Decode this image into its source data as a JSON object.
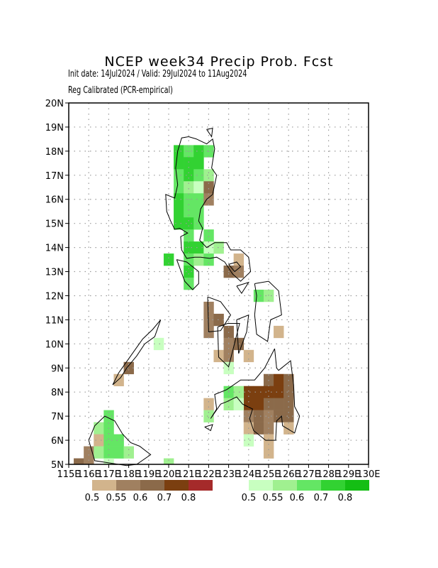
{
  "header": {
    "title": "NCEP week34 Precip Prob. Fcst",
    "subtitle_1": "Init date: 14Jul2024 / Valid: 29Jul2024 to 11Aug2024",
    "subtitle_2": "Reg Calibrated (PCR-empirical)"
  },
  "axes": {
    "lon_min": 115,
    "lon_max": 130,
    "lat_min": 5,
    "lat_max": 20,
    "x_ticks": [
      "115E",
      "116E",
      "117E",
      "118E",
      "119E",
      "120E",
      "121E",
      "122E",
      "123E",
      "124E",
      "125E",
      "126E",
      "127E",
      "128E",
      "129E",
      "130E"
    ],
    "y_ticks": [
      "5N",
      "6N",
      "7N",
      "8N",
      "9N",
      "10N",
      "11N",
      "12N",
      "13N",
      "14N",
      "15N",
      "16N",
      "17N",
      "18N",
      "19N",
      "20N"
    ],
    "grid": true
  },
  "legend": {
    "dry": {
      "colors": [
        "#d2b48c",
        "#a08060",
        "#8b6a4a",
        "#7b3f10",
        "#a52a2a"
      ],
      "labels": [
        "0.5",
        "0.55",
        "0.6",
        "0.7",
        "0.8"
      ]
    },
    "wet": {
      "colors": [
        "#c8ffc0",
        "#a0f090",
        "#64e664",
        "#32d232",
        "#14be14"
      ],
      "labels": [
        "0.5",
        "0.55",
        "0.6",
        "0.7",
        "0.8"
      ]
    }
  },
  "cells": [
    {
      "lon": 120.5,
      "lat": 18,
      "c": "#32d232"
    },
    {
      "lon": 120.5,
      "lat": 17.5,
      "c": "#32d232"
    },
    {
      "lon": 120.5,
      "lat": 17,
      "c": "#64e664"
    },
    {
      "lon": 120.5,
      "lat": 16.5,
      "c": "#64e664"
    },
    {
      "lon": 120.5,
      "lat": 16,
      "c": "#32d232"
    },
    {
      "lon": 120.5,
      "lat": 15.5,
      "c": "#32d232"
    },
    {
      "lon": 120.5,
      "lat": 15,
      "c": "#32d232"
    },
    {
      "lon": 121,
      "lat": 18,
      "c": "#64e664"
    },
    {
      "lon": 121,
      "lat": 17.5,
      "c": "#32d232"
    },
    {
      "lon": 121,
      "lat": 17,
      "c": "#32d232"
    },
    {
      "lon": 121,
      "lat": 16.5,
      "c": "#a0f090"
    },
    {
      "lon": 121,
      "lat": 16,
      "c": "#64e664"
    },
    {
      "lon": 121,
      "lat": 15.5,
      "c": "#64e664"
    },
    {
      "lon": 121,
      "lat": 15,
      "c": "#32d232"
    },
    {
      "lon": 121,
      "lat": 14.5,
      "c": "#64e664"
    },
    {
      "lon": 121,
      "lat": 14,
      "c": "#32d232"
    },
    {
      "lon": 121,
      "lat": 13.5,
      "c": "#64e664"
    },
    {
      "lon": 121,
      "lat": 13,
      "c": "#32d232"
    },
    {
      "lon": 121,
      "lat": 12.5,
      "c": "#64e664"
    },
    {
      "lon": 121.5,
      "lat": 18,
      "c": "#32d232"
    },
    {
      "lon": 121.5,
      "lat": 17.5,
      "c": "#32d232"
    },
    {
      "lon": 121.5,
      "lat": 17,
      "c": "#64e664"
    },
    {
      "lon": 121.5,
      "lat": 16.5,
      "c": "#c8ffc0"
    },
    {
      "lon": 121.5,
      "lat": 16,
      "c": "#64e664"
    },
    {
      "lon": 121.5,
      "lat": 15.5,
      "c": "#64e664"
    },
    {
      "lon": 121.5,
      "lat": 15,
      "c": "#64e664"
    },
    {
      "lon": 121.5,
      "lat": 14,
      "c": "#32d232"
    },
    {
      "lon": 121.5,
      "lat": 13.5,
      "c": "#a0f090"
    },
    {
      "lon": 122,
      "lat": 18,
      "c": "#64e664"
    },
    {
      "lon": 122,
      "lat": 17,
      "c": "#a0f090"
    },
    {
      "lon": 122,
      "lat": 16.5,
      "c": "#8b6a4a"
    },
    {
      "lon": 122,
      "lat": 16,
      "c": "#a08060"
    },
    {
      "lon": 122,
      "lat": 14.5,
      "c": "#64e664"
    },
    {
      "lon": 122,
      "lat": 14,
      "c": "#c8ffc0"
    },
    {
      "lon": 122,
      "lat": 13.5,
      "c": "#64e664"
    },
    {
      "lon": 122.5,
      "lat": 14,
      "c": "#a0f090"
    },
    {
      "lon": 120,
      "lat": 13.5,
      "c": "#32d232"
    },
    {
      "lon": 123.5,
      "lat": 13.5,
      "c": "#d2b48c"
    },
    {
      "lon": 123,
      "lat": 13,
      "c": "#8b6a4a"
    },
    {
      "lon": 123.5,
      "lat": 13,
      "c": "#a08060"
    },
    {
      "lon": 124.5,
      "lat": 12,
      "c": "#64e664"
    },
    {
      "lon": 125,
      "lat": 12,
      "c": "#a0f090"
    },
    {
      "lon": 122,
      "lat": 11.5,
      "c": "#a08060"
    },
    {
      "lon": 122,
      "lat": 11,
      "c": "#a08060"
    },
    {
      "lon": 122.5,
      "lat": 11,
      "c": "#8b6a4a"
    },
    {
      "lon": 122,
      "lat": 10.5,
      "c": "#a08060"
    },
    {
      "lon": 123,
      "lat": 10.5,
      "c": "#8b6a4a"
    },
    {
      "lon": 123,
      "lat": 10,
      "c": "#a08060"
    },
    {
      "lon": 123.5,
      "lat": 10,
      "c": "#8b6a4a"
    },
    {
      "lon": 122.5,
      "lat": 9.5,
      "c": "#d2b48c"
    },
    {
      "lon": 123,
      "lat": 9.5,
      "c": "#a08060"
    },
    {
      "lon": 124,
      "lat": 9.5,
      "c": "#d2b48c"
    },
    {
      "lon": 123,
      "lat": 9,
      "c": "#c8ffc0"
    },
    {
      "lon": 125.5,
      "lat": 10.5,
      "c": "#d2b48c"
    },
    {
      "lon": 118,
      "lat": 9,
      "c": "#8b6a4a"
    },
    {
      "lon": 117.5,
      "lat": 8.5,
      "c": "#d2b48c"
    },
    {
      "lon": 119.5,
      "lat": 10,
      "c": "#c8ffc0"
    },
    {
      "lon": 125,
      "lat": 8.5,
      "c": "#8b6a4a"
    },
    {
      "lon": 125.5,
      "lat": 8.5,
      "c": "#7b3f10"
    },
    {
      "lon": 126,
      "lat": 8.5,
      "c": "#8b6a4a"
    },
    {
      "lon": 124,
      "lat": 8,
      "c": "#7b3f10"
    },
    {
      "lon": 124.5,
      "lat": 8,
      "c": "#7b3f10"
    },
    {
      "lon": 125,
      "lat": 8,
      "c": "#7b3f10"
    },
    {
      "lon": 125.5,
      "lat": 8,
      "c": "#7b3f10"
    },
    {
      "lon": 126,
      "lat": 8,
      "c": "#8b6a4a"
    },
    {
      "lon": 123,
      "lat": 8,
      "c": "#64e664"
    },
    {
      "lon": 123.5,
      "lat": 8,
      "c": "#a0f090"
    },
    {
      "lon": 124,
      "lat": 7.5,
      "c": "#7b3f10"
    },
    {
      "lon": 124.5,
      "lat": 7.5,
      "c": "#7b3f10"
    },
    {
      "lon": 125,
      "lat": 7.5,
      "c": "#8b6a4a"
    },
    {
      "lon": 125.5,
      "lat": 7.5,
      "c": "#8b6a4a"
    },
    {
      "lon": 126,
      "lat": 7.5,
      "c": "#8b6a4a"
    },
    {
      "lon": 123,
      "lat": 7.5,
      "c": "#a0f090"
    },
    {
      "lon": 122,
      "lat": 7.5,
      "c": "#d2b48c"
    },
    {
      "lon": 123.5,
      "lat": 7.5,
      "c": "#c8ffc0"
    },
    {
      "lon": 124,
      "lat": 7,
      "c": "#a08060"
    },
    {
      "lon": 124.5,
      "lat": 7,
      "c": "#8b6a4a"
    },
    {
      "lon": 125,
      "lat": 7,
      "c": "#a08060"
    },
    {
      "lon": 125.5,
      "lat": 7,
      "c": "#8b6a4a"
    },
    {
      "lon": 126,
      "lat": 7,
      "c": "#8b6a4a"
    },
    {
      "lon": 122,
      "lat": 7,
      "c": "#a0f090"
    },
    {
      "lon": 124,
      "lat": 6.5,
      "c": "#d2b48c"
    },
    {
      "lon": 124.5,
      "lat": 6.5,
      "c": "#8b6a4a"
    },
    {
      "lon": 125,
      "lat": 6.5,
      "c": "#a08060"
    },
    {
      "lon": 126,
      "lat": 6.5,
      "c": "#d2b48c"
    },
    {
      "lon": 124,
      "lat": 6,
      "c": "#c8ffc0"
    },
    {
      "lon": 125,
      "lat": 6,
      "c": "#d2b48c"
    },
    {
      "lon": 125,
      "lat": 5.5,
      "c": "#d2b48c"
    },
    {
      "lon": 117,
      "lat": 7,
      "c": "#64e664"
    },
    {
      "lon": 116.5,
      "lat": 6.5,
      "c": "#a0f090"
    },
    {
      "lon": 117,
      "lat": 6.5,
      "c": "#64e664"
    },
    {
      "lon": 116.5,
      "lat": 6,
      "c": "#d2b48c"
    },
    {
      "lon": 117,
      "lat": 6,
      "c": "#64e664"
    },
    {
      "lon": 117.5,
      "lat": 6,
      "c": "#64e664"
    },
    {
      "lon": 116,
      "lat": 5.5,
      "c": "#a08060"
    },
    {
      "lon": 116.5,
      "lat": 5.5,
      "c": "#a0f090"
    },
    {
      "lon": 117,
      "lat": 5.5,
      "c": "#64e664"
    },
    {
      "lon": 117.5,
      "lat": 5.5,
      "c": "#64e664"
    },
    {
      "lon": 118,
      "lat": 5.5,
      "c": "#a0f090"
    },
    {
      "lon": 115.5,
      "lat": 5,
      "c": "#8b6a4a"
    },
    {
      "lon": 116,
      "lat": 5,
      "c": "#a08060"
    },
    {
      "lon": 117,
      "lat": 5,
      "c": "#c8ffc0"
    },
    {
      "lon": 120,
      "lat": 5,
      "c": "#a0f090"
    }
  ],
  "coastlines": [
    [
      [
        121.4,
        18.5
      ],
      [
        121.9,
        18.3
      ],
      [
        122.2,
        18.5
      ],
      [
        122.3,
        18.1
      ],
      [
        122.15,
        17.3
      ],
      [
        122.4,
        17.0
      ],
      [
        122.2,
        16.2
      ],
      [
        121.9,
        16.0
      ],
      [
        121.6,
        15.6
      ],
      [
        121.5,
        15.1
      ],
      [
        121.7,
        14.8
      ],
      [
        121.55,
        14.3
      ],
      [
        121.9,
        14.0
      ],
      [
        122.3,
        14.2
      ],
      [
        122.9,
        14.2
      ],
      [
        123.1,
        13.9
      ],
      [
        123.6,
        13.9
      ],
      [
        124.0,
        13.6
      ],
      [
        124.1,
        13.0
      ],
      [
        123.6,
        12.6
      ],
      [
        123.2,
        12.9
      ],
      [
        122.8,
        13.4
      ],
      [
        122.4,
        13.6
      ],
      [
        122.05,
        13.55
      ],
      [
        121.6,
        13.6
      ],
      [
        121.3,
        13.6
      ],
      [
        120.9,
        13.55
      ],
      [
        120.65,
        13.9
      ],
      [
        120.6,
        14.45
      ],
      [
        120.95,
        14.6
      ],
      [
        120.55,
        14.8
      ],
      [
        120.3,
        14.75
      ],
      [
        120.1,
        15.1
      ],
      [
        119.9,
        15.5
      ],
      [
        119.85,
        16.2
      ],
      [
        120.3,
        16.05
      ],
      [
        120.45,
        16.6
      ],
      [
        120.35,
        17.3
      ],
      [
        120.45,
        18.0
      ],
      [
        120.65,
        18.55
      ],
      [
        121.0,
        18.6
      ],
      [
        121.4,
        18.5
      ]
    ],
    [
      [
        123.0,
        13.3
      ],
      [
        123.4,
        13.4
      ],
      [
        123.6,
        13.2
      ],
      [
        123.3,
        13.0
      ],
      [
        123.0,
        13.3
      ]
    ],
    [
      [
        119.3,
        10.3
      ],
      [
        118.8,
        10.0
      ],
      [
        118.4,
        9.5
      ],
      [
        117.9,
        9.0
      ],
      [
        117.6,
        8.6
      ],
      [
        117.2,
        8.3
      ],
      [
        117.5,
        8.8
      ],
      [
        118.1,
        9.5
      ],
      [
        118.7,
        10.2
      ],
      [
        119.2,
        10.6
      ],
      [
        119.6,
        11.0
      ],
      [
        119.3,
        10.3
      ]
    ],
    [
      [
        120.4,
        13.5
      ],
      [
        120.9,
        13.4
      ],
      [
        121.5,
        13.0
      ],
      [
        121.5,
        12.5
      ],
      [
        121.2,
        12.25
      ],
      [
        120.8,
        12.6
      ],
      [
        120.4,
        13.5
      ]
    ],
    [
      [
        121.95,
        11.95
      ],
      [
        122.6,
        11.75
      ],
      [
        123.1,
        11.2
      ],
      [
        122.6,
        10.55
      ],
      [
        122.0,
        10.5
      ],
      [
        121.95,
        11.95
      ]
    ],
    [
      [
        122.45,
        10.7
      ],
      [
        122.95,
        10.85
      ],
      [
        123.55,
        10.85
      ],
      [
        123.2,
        9.7
      ],
      [
        123.0,
        9.05
      ],
      [
        122.5,
        9.45
      ],
      [
        122.45,
        10.7
      ]
    ],
    [
      [
        123.4,
        11.0
      ],
      [
        124.0,
        11.2
      ],
      [
        123.9,
        10.5
      ],
      [
        123.5,
        9.6
      ],
      [
        123.4,
        11.0
      ]
    ],
    [
      [
        124.3,
        12.5
      ],
      [
        125.0,
        12.6
      ],
      [
        125.5,
        12.2
      ],
      [
        125.65,
        11.2
      ],
      [
        125.1,
        11.0
      ],
      [
        124.95,
        10.1
      ],
      [
        124.4,
        10.4
      ],
      [
        124.3,
        11.2
      ],
      [
        124.4,
        12.0
      ],
      [
        124.3,
        12.5
      ]
    ],
    [
      [
        125.3,
        9.8
      ],
      [
        125.4,
        9.0
      ],
      [
        125.5,
        8.9
      ],
      [
        126.1,
        9.3
      ],
      [
        126.25,
        8.3
      ],
      [
        126.3,
        7.4
      ],
      [
        126.55,
        7.0
      ],
      [
        126.3,
        6.3
      ],
      [
        125.7,
        6.6
      ],
      [
        125.65,
        7.0
      ],
      [
        125.4,
        6.8
      ],
      [
        125.35,
        6.0
      ],
      [
        124.85,
        6.0
      ],
      [
        124.25,
        6.4
      ],
      [
        124.05,
        6.9
      ],
      [
        124.2,
        7.3
      ],
      [
        123.7,
        7.5
      ],
      [
        123.4,
        7.8
      ],
      [
        122.9,
        7.6
      ],
      [
        122.6,
        7.5
      ],
      [
        122.1,
        6.9
      ],
      [
        122.4,
        7.3
      ],
      [
        122.3,
        7.9
      ],
      [
        122.9,
        8.1
      ],
      [
        123.6,
        8.5
      ],
      [
        124.3,
        8.5
      ],
      [
        124.8,
        9.0
      ],
      [
        125.3,
        9.8
      ]
    ],
    [
      [
        121.8,
        6.55
      ],
      [
        122.2,
        6.65
      ],
      [
        122.1,
        6.4
      ],
      [
        121.8,
        6.55
      ]
    ],
    [
      [
        116.0,
        6.0
      ],
      [
        116.3,
        6.6
      ],
      [
        116.8,
        7.0
      ],
      [
        117.3,
        6.8
      ],
      [
        117.7,
        6.25
      ],
      [
        118.1,
        5.9
      ],
      [
        118.55,
        5.75
      ],
      [
        119.1,
        5.4
      ],
      [
        118.4,
        5.0
      ],
      [
        117.9,
        4.95
      ],
      [
        116.3,
        5.15
      ],
      [
        116.0,
        6.0
      ]
    ],
    [
      [
        123.4,
        12.4
      ],
      [
        124.0,
        12.55
      ],
      [
        123.65,
        12.1
      ],
      [
        123.4,
        12.4
      ]
    ],
    [
      [
        121.9,
        18.9
      ],
      [
        122.2,
        18.95
      ],
      [
        122.15,
        18.6
      ],
      [
        121.9,
        18.9
      ]
    ]
  ]
}
